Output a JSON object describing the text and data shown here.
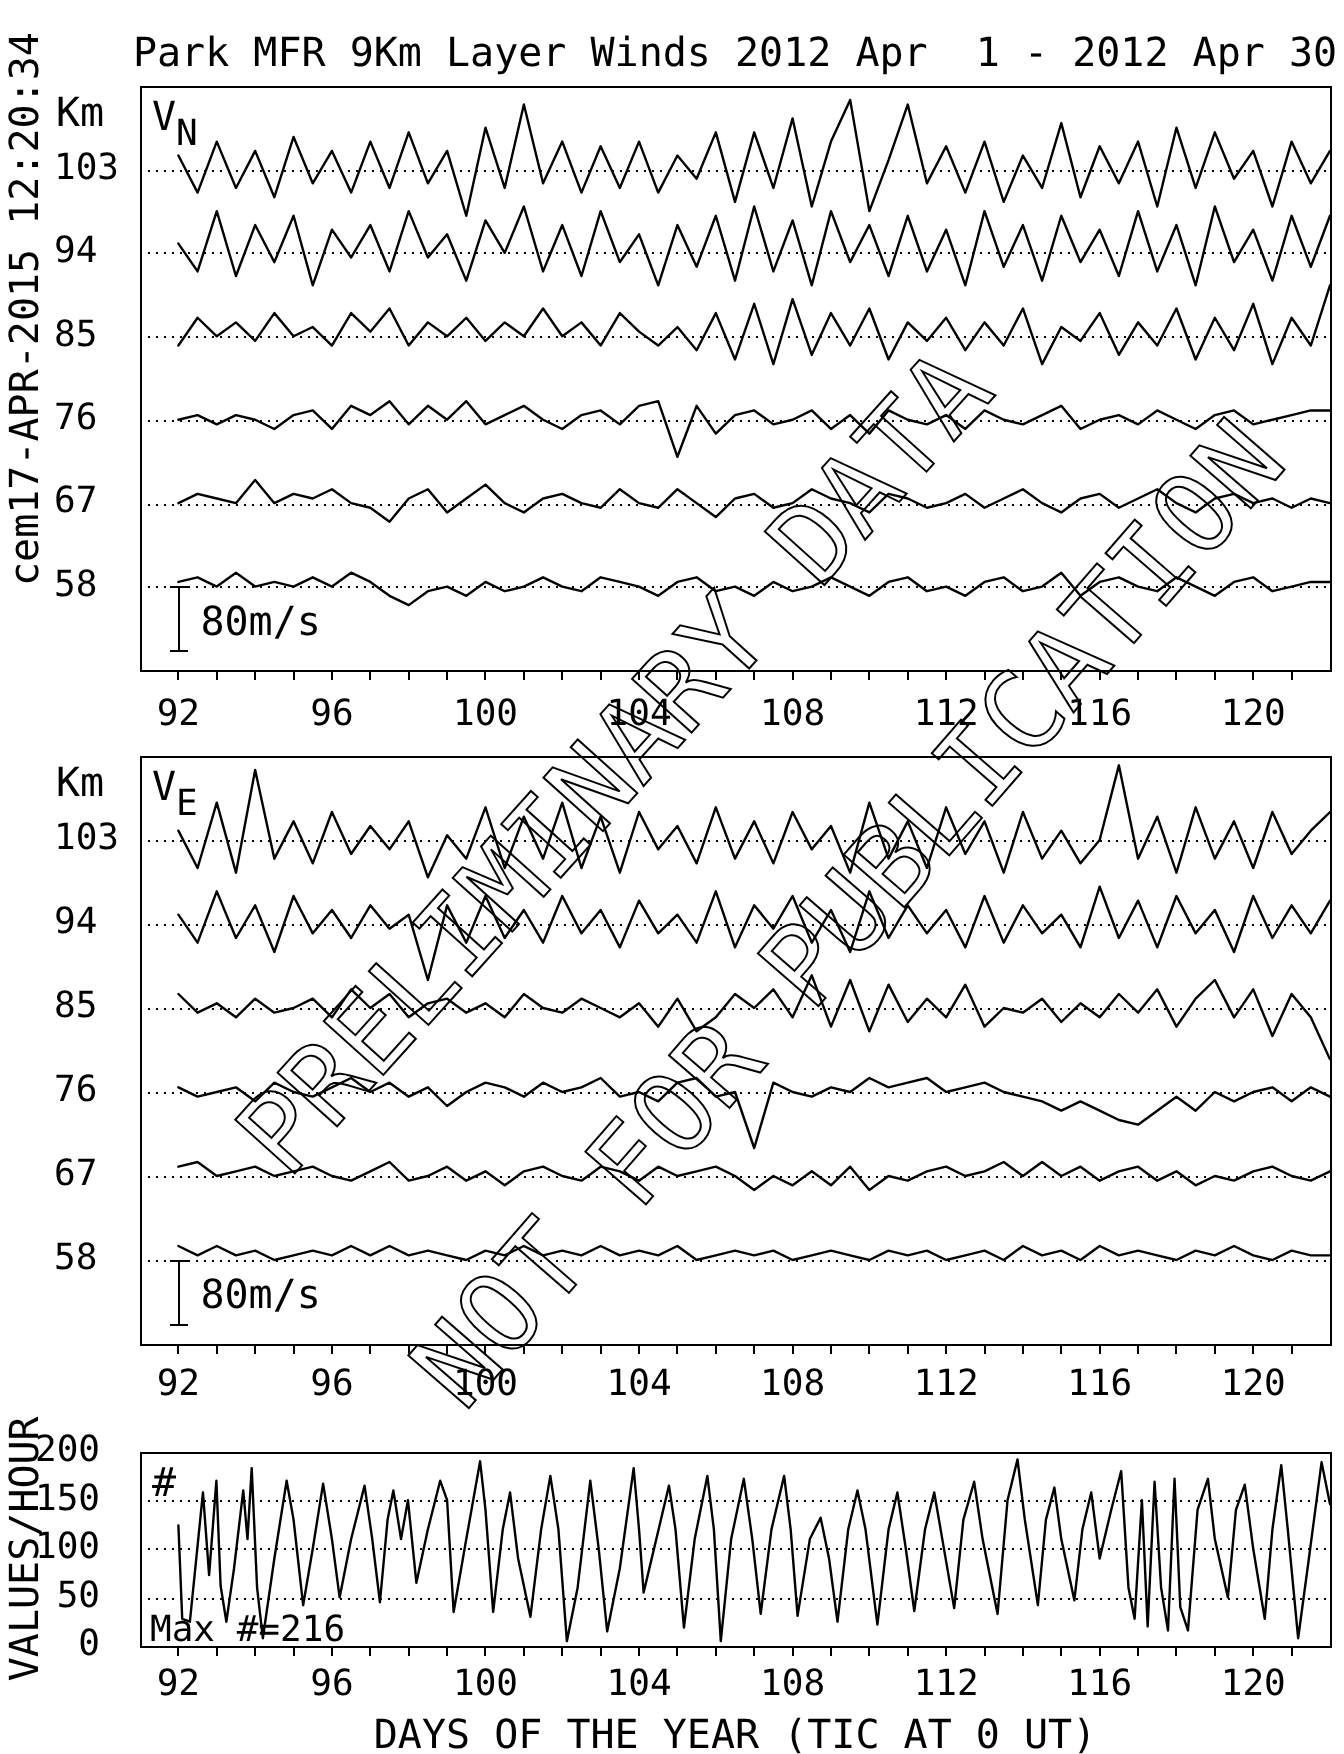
{
  "chart_data": [
    {
      "type": "line",
      "title": "Park MFR 9Km Layer Winds 2012 Apr  1 - 2012 Apr 30",
      "ylabel": "Km",
      "annotations": [
        "V$_{N}$",
        "80m/s",
        "cem17-APR-2015 12:20:34"
      ],
      "x": [
        92,
        92.5,
        93,
        93.5,
        94,
        94.5,
        95,
        95.5,
        96,
        96.5,
        97,
        97.5,
        98,
        98.5,
        99,
        99.5,
        100,
        100.5,
        101,
        101.5,
        102,
        102.5,
        103,
        103.5,
        104,
        104.5,
        105,
        105.5,
        106,
        106.5,
        107,
        107.5,
        108,
        108.5,
        109,
        109.5,
        110,
        110.5,
        111,
        111.5,
        112,
        112.5,
        113,
        113.5,
        114,
        114.5,
        115,
        115.5,
        116,
        116.5,
        117,
        117.5,
        118,
        118.5,
        119,
        119.5,
        120,
        120.5,
        121,
        121.5,
        122
      ],
      "series": [
        {
          "color": "#000000",
          "values": [
            104.5,
            100.5,
            106,
            101,
            105,
            100,
            106.5,
            101.5,
            105,
            100.5,
            106,
            101,
            107,
            101.5,
            105,
            98,
            107.5,
            101,
            110,
            101.5,
            106,
            100.5,
            105.5,
            101,
            106,
            100.5,
            104.5,
            102,
            107,
            99.5,
            107,
            101,
            108.5,
            99,
            106,
            110.5,
            98.5,
            104,
            110,
            101.5,
            105.5,
            100.5,
            106,
            99.5,
            104.5,
            101,
            108,
            100,
            105.5,
            101.5,
            106,
            99,
            107.5,
            101,
            107,
            102,
            105,
            99,
            106,
            101.5,
            105
          ]
        },
        {
          "color": "#000000",
          "values": [
            95,
            92,
            98.5,
            91.5,
            97,
            93,
            98,
            90.5,
            96.5,
            93.5,
            97,
            92,
            98.5,
            93.5,
            96,
            91,
            97.5,
            94,
            99,
            92,
            97,
            91.5,
            98.5,
            93,
            96,
            90.5,
            97,
            92.5,
            98,
            91,
            99,
            92,
            97.5,
            90.5,
            98.5,
            93,
            97,
            91.5,
            98,
            92,
            96.5,
            90.5,
            98.5,
            92.5,
            97,
            91,
            98,
            93,
            96.5,
            91.5,
            98.5,
            92,
            97,
            90.5,
            99,
            93,
            96.5,
            91,
            98,
            92.5,
            98
          ]
        },
        {
          "color": "#000000",
          "values": [
            84,
            87,
            85,
            86.5,
            84.5,
            87.5,
            85,
            86,
            84,
            87.5,
            85.5,
            88,
            84,
            86.5,
            85,
            87,
            84.5,
            86.5,
            85,
            88,
            85,
            86.5,
            84,
            87.5,
            85.5,
            84,
            86,
            83.5,
            87.5,
            82.5,
            88.5,
            82,
            89,
            83,
            87.5,
            84,
            88,
            82.5,
            86.5,
            84.5,
            87,
            83.5,
            86.5,
            84,
            88,
            82,
            86,
            84.5,
            87.5,
            83,
            86.5,
            84,
            88,
            82.5,
            87,
            83.5,
            88.5,
            82,
            87,
            84,
            90.5
          ]
        },
        {
          "color": "#000000",
          "values": [
            76,
            76.5,
            75.5,
            76.5,
            76,
            75,
            76.5,
            77,
            75,
            77.5,
            76.5,
            78,
            75.5,
            77.5,
            76,
            78,
            75.5,
            76.5,
            77.5,
            76,
            75,
            76.5,
            77,
            75.5,
            77.5,
            78,
            72,
            77.5,
            74.5,
            76.5,
            77,
            75.5,
            76,
            77,
            75,
            76.5,
            74.5,
            77,
            76,
            75.5,
            76.5,
            75,
            77,
            76,
            75.5,
            76.5,
            77.5,
            75,
            76,
            76.5,
            75.5,
            77,
            76,
            75,
            76.5,
            77,
            75.5,
            76,
            76.5,
            77,
            77
          ]
        },
        {
          "color": "#000000",
          "values": [
            67,
            68,
            67.5,
            67,
            69.5,
            67,
            68,
            67.5,
            68.5,
            67,
            66.5,
            65,
            67.5,
            68.5,
            66,
            67.5,
            69,
            67,
            66,
            67.5,
            68,
            67,
            66.5,
            68.5,
            67,
            66.5,
            68.5,
            67,
            65.5,
            67.5,
            68,
            66.5,
            67,
            68.5,
            67.5,
            67,
            66,
            68,
            67.5,
            66.5,
            67,
            68,
            66.5,
            67.5,
            68.5,
            67,
            66,
            67.5,
            68,
            66.5,
            67.5,
            68.5,
            67,
            66,
            67.5,
            68,
            67,
            67.5,
            66.5,
            67.5,
            67
          ]
        },
        {
          "color": "#000000",
          "values": [
            58.5,
            59,
            58,
            59.5,
            58,
            58.5,
            58,
            59,
            58,
            59.5,
            58.5,
            57,
            56,
            57.5,
            58,
            57,
            58.5,
            57.5,
            58,
            59,
            58,
            57.5,
            59,
            58.5,
            58,
            57,
            58.5,
            59,
            57.5,
            58,
            57,
            58.5,
            57.5,
            58,
            59,
            58,
            57,
            58.5,
            59,
            57.5,
            58,
            57,
            58.5,
            59,
            57.5,
            58,
            59.5,
            57,
            58.5,
            59,
            58,
            57.5,
            59,
            58,
            57,
            58.5,
            59,
            57.5,
            58,
            58.5,
            58.5
          ]
        }
      ],
      "xlim": [
        91,
        122
      ],
      "xticks": [
        92,
        {
          "value": 93,
          "label": null
        },
        {
          "value": 94,
          "label": null
        },
        {
          "value": 95,
          "label": null
        },
        96,
        {
          "value": 97,
          "label": null
        },
        {
          "value": 98,
          "label": null
        },
        {
          "value": 99,
          "label": null
        },
        100,
        {
          "value": 101,
          "label": null
        },
        {
          "value": 102,
          "label": null
        },
        {
          "value": 103,
          "label": null
        },
        104,
        {
          "value": 105,
          "label": null
        },
        {
          "value": 106,
          "label": null
        },
        {
          "value": 107,
          "label": null
        },
        108,
        {
          "value": 109,
          "label": null
        },
        {
          "value": 110,
          "label": null
        },
        {
          "value": 111,
          "label": null
        },
        112,
        {
          "value": 113,
          "label": null
        },
        {
          "value": 114,
          "label": null
        },
        {
          "value": 115,
          "label": null
        },
        116,
        {
          "value": 117,
          "label": null
        },
        {
          "value": 118,
          "label": null
        },
        {
          "value": 119,
          "label": null
        },
        120,
        {
          "value": 121,
          "label": null
        }
      ],
      "ylim": [
        49,
        112
      ],
      "yticks": [
        58,
        67,
        76,
        85,
        94,
        103
      ],
      "grid": "y"
    },
    {
      "type": "line",
      "ylabel": "Km",
      "annotations": [
        "V$_{E}$",
        "80m/s",
        "PRELIMINARY DATA",
        "NOT FOR PUBLICATION"
      ],
      "x": [
        92,
        92.5,
        93,
        93.5,
        94,
        94.5,
        95,
        95.5,
        96,
        96.5,
        97,
        97.5,
        98,
        98.5,
        99,
        99.5,
        100,
        100.5,
        101,
        101.5,
        102,
        102.5,
        103,
        103.5,
        104,
        104.5,
        105,
        105.5,
        106,
        106.5,
        107,
        107.5,
        108,
        108.5,
        109,
        109.5,
        110,
        110.5,
        111,
        111.5,
        112,
        112.5,
        113,
        113.5,
        114,
        114.5,
        115,
        115.5,
        116,
        116.5,
        117,
        117.5,
        118,
        118.5,
        119,
        119.5,
        120,
        120.5,
        121,
        121.5,
        122
      ],
      "series": [
        {
          "color": "#000000",
          "values": [
            104,
            100,
            107,
            99.5,
            110.5,
            101,
            105,
            100.5,
            106,
            101.5,
            104.5,
            102,
            105,
            99,
            103.5,
            101,
            106.5,
            100,
            105.5,
            101,
            107,
            100,
            105.5,
            99.5,
            106,
            102,
            104.5,
            100.5,
            106.5,
            101,
            105,
            100.5,
            106,
            102,
            104.5,
            99.5,
            107,
            101,
            105,
            100,
            106.5,
            101.5,
            105,
            99.5,
            106,
            101,
            104,
            100.5,
            103,
            111,
            101,
            105.5,
            99.5,
            106.5,
            101,
            105,
            100,
            106,
            101.5,
            104,
            106
          ]
        },
        {
          "color": "#000000",
          "values": [
            95,
            92,
            97.5,
            92.5,
            96,
            91,
            97,
            93,
            95.5,
            92.5,
            96,
            93.5,
            95,
            88,
            96,
            92,
            97,
            92.5,
            95.5,
            92,
            97,
            93,
            95.5,
            91.5,
            96.5,
            93,
            95,
            92,
            97.5,
            91.5,
            96,
            93.5,
            97,
            92,
            95.5,
            91,
            97.5,
            92.5,
            96,
            93,
            95.5,
            91.5,
            97,
            92,
            96,
            93,
            95,
            91.5,
            98,
            92.5,
            96.5,
            91.5,
            97,
            93,
            95.5,
            91,
            97,
            92.5,
            96,
            93,
            96.5
          ]
        },
        {
          "color": "#000000",
          "values": [
            86.5,
            84.5,
            85.5,
            84,
            86,
            84.5,
            85,
            86,
            84,
            87,
            85,
            86.5,
            84,
            85.5,
            86,
            84.5,
            85.5,
            84,
            86.5,
            85,
            84.5,
            86,
            85,
            84,
            85.5,
            83,
            86,
            82.5,
            84,
            86.5,
            85,
            87,
            84,
            88.5,
            83,
            88,
            82.5,
            87.5,
            83.5,
            86,
            84,
            87.5,
            83,
            85,
            84.5,
            86,
            83.5,
            85.5,
            84,
            86.5,
            84.5,
            87,
            83,
            86,
            88,
            84,
            87,
            82,
            86.5,
            84,
            79.5
          ]
        },
        {
          "color": "#000000",
          "values": [
            76.5,
            75.5,
            76,
            76.5,
            75,
            77,
            76,
            75.5,
            76.5,
            77.5,
            76,
            77,
            75.5,
            76.5,
            74.5,
            76,
            77,
            76.5,
            75.5,
            77,
            76,
            76.5,
            77.5,
            75.5,
            76,
            75,
            77,
            77.5,
            75.5,
            76,
            70,
            77,
            76,
            75.5,
            76.5,
            76,
            77.5,
            76.5,
            77,
            77.5,
            76,
            76.5,
            77,
            76,
            75.5,
            75,
            74,
            75,
            74,
            73,
            72.5,
            74,
            75.5,
            74,
            76,
            75,
            76,
            76.5,
            75,
            76.5,
            75.5
          ]
        },
        {
          "color": "#000000",
          "values": [
            68,
            68.5,
            67,
            67.5,
            68,
            67,
            67.5,
            68,
            67,
            66.5,
            67.5,
            68.5,
            66.5,
            67,
            68,
            66.5,
            67.5,
            66,
            67.5,
            68,
            67,
            66.5,
            68,
            67.5,
            66.5,
            68,
            67,
            67.5,
            68,
            67,
            65.5,
            67,
            66,
            67.5,
            66,
            68,
            65.5,
            67,
            66.5,
            67.5,
            68,
            67,
            67.5,
            68.5,
            67,
            68.5,
            67,
            68,
            66.5,
            67.5,
            68,
            66.5,
            67.5,
            66,
            67,
            66.5,
            67.5,
            68,
            67,
            66.5,
            67.5
          ]
        },
        {
          "color": "#000000",
          "values": [
            59.5,
            58.5,
            59.5,
            58.5,
            59,
            58,
            58.5,
            59,
            58.5,
            59.5,
            58.5,
            59.5,
            58.5,
            59,
            58.5,
            58,
            59,
            58.5,
            59.5,
            58.5,
            59,
            58.5,
            59.5,
            58.5,
            59,
            58.5,
            59.5,
            58,
            58.5,
            59,
            58.5,
            59,
            58,
            58.5,
            59,
            58.5,
            58,
            59,
            58.5,
            59,
            58,
            58.5,
            59,
            58,
            59.5,
            58.5,
            59,
            58,
            59.5,
            58.5,
            59,
            58.5,
            58,
            59,
            58.5,
            59.5,
            58.5,
            58,
            59,
            58.5,
            58.5
          ]
        }
      ],
      "xlim": [
        91,
        122
      ],
      "xticks": [
        92,
        {
          "value": 93,
          "label": null
        },
        {
          "value": 94,
          "label": null
        },
        {
          "value": 95,
          "label": null
        },
        96,
        {
          "value": 97,
          "label": null
        },
        {
          "value": 98,
          "label": null
        },
        {
          "value": 99,
          "label": null
        },
        100,
        {
          "value": 101,
          "label": null
        },
        {
          "value": 102,
          "label": null
        },
        {
          "value": 103,
          "label": null
        },
        104,
        {
          "value": 105,
          "label": null
        },
        {
          "value": 106,
          "label": null
        },
        {
          "value": 107,
          "label": null
        },
        108,
        {
          "value": 109,
          "label": null
        },
        {
          "value": 110,
          "label": null
        },
        {
          "value": 111,
          "label": null
        },
        112,
        {
          "value": 113,
          "label": null
        },
        {
          "value": 114,
          "label": null
        },
        {
          "value": 115,
          "label": null
        },
        116,
        {
          "value": 117,
          "label": null
        },
        {
          "value": 118,
          "label": null
        },
        {
          "value": 119,
          "label": null
        },
        120,
        {
          "value": 121,
          "label": null
        }
      ],
      "ylim": [
        49,
        112
      ],
      "yticks": [
        58,
        67,
        76,
        85,
        94,
        103
      ],
      "grid": "y"
    },
    {
      "type": "line",
      "xlabel": "DAYS OF THE YEAR (TIC AT 0 UT)",
      "ylabel": "VALUES/HOUR",
      "annotations": [
        "#",
        "Max #=216"
      ],
      "x": [
        92,
        92.1,
        92.3,
        92.64,
        92.8,
        92.99,
        93.1,
        93.25,
        93.45,
        93.69,
        93.8,
        93.91,
        94.05,
        94.2,
        94.5,
        94.82,
        95,
        95.25,
        95.5,
        95.77,
        96,
        96.2,
        96.5,
        96.85,
        97.05,
        97.25,
        97.45,
        97.6,
        97.8,
        97.98,
        98.2,
        98.5,
        98.82,
        99,
        99.17,
        99.5,
        99.86,
        100,
        100.2,
        100.45,
        100.64,
        100.85,
        101.17,
        101.45,
        101.69,
        101.9,
        102.12,
        102.4,
        102.73,
        102.95,
        103.17,
        103.5,
        103.86,
        104,
        104.12,
        104.3,
        104.78,
        104.95,
        105.17,
        105.45,
        105.78,
        105.95,
        106.13,
        106.4,
        106.73,
        106.95,
        107.17,
        107.45,
        107.78,
        107.95,
        108.13,
        108.45,
        108.73,
        108.95,
        109.17,
        109.45,
        109.69,
        109.9,
        110.21,
        110.5,
        110.73,
        110.95,
        111.17,
        111.45,
        111.69,
        111.9,
        112.21,
        112.45,
        112.73,
        112.95,
        113.34,
        113.6,
        113.86,
        114.05,
        114.39,
        114.6,
        114.82,
        115,
        115.34,
        115.55,
        115.78,
        116,
        116.3,
        116.56,
        116.75,
        116.91,
        117.1,
        117.25,
        117.43,
        117.6,
        117.78,
        117.95,
        118.1,
        118.3,
        118.55,
        118.82,
        119,
        119.34,
        119.55,
        119.78,
        120,
        120.3,
        120.5,
        120.73,
        120.9,
        121.17,
        121.45,
        121.78,
        122
      ],
      "series": [
        {
          "color": "#000000",
          "values": [
            124,
            28,
            25,
            158,
            73,
            170,
            62,
            25,
            80,
            160,
            110,
            183,
            60,
            8,
            90,
            170,
            130,
            42,
            100,
            167,
            110,
            50,
            110,
            165,
            110,
            45,
            130,
            160,
            110,
            150,
            65,
            120,
            170,
            150,
            35,
            110,
            190,
            140,
            35,
            120,
            158,
            90,
            30,
            120,
            175,
            120,
            5,
            60,
            170,
            100,
            15,
            80,
            183,
            120,
            55,
            85,
            165,
            120,
            19,
            110,
            175,
            120,
            5,
            110,
            172,
            110,
            33,
            120,
            175,
            120,
            31,
            110,
            132,
            90,
            25,
            120,
            160,
            120,
            22,
            120,
            158,
            100,
            36,
            120,
            158,
            110,
            39,
            130,
            169,
            110,
            33,
            150,
            192,
            130,
            42,
            130,
            163,
            110,
            47,
            120,
            158,
            90,
            140,
            180,
            60,
            28,
            150,
            20,
            169,
            60,
            16,
            172,
            40,
            16,
            140,
            172,
            110,
            50,
            140,
            166,
            100,
            28,
            120,
            186,
            120,
            8,
            90,
            189,
            146
          ]
        }
      ],
      "xlim": [
        91,
        122
      ],
      "xticks": [
        92,
        {
          "value": 93,
          "label": null
        },
        {
          "value": 94,
          "label": null
        },
        {
          "value": 95,
          "label": null
        },
        96,
        {
          "value": 97,
          "label": null
        },
        {
          "value": 98,
          "label": null
        },
        {
          "value": 99,
          "label": null
        },
        100,
        {
          "value": 101,
          "label": null
        },
        {
          "value": 102,
          "label": null
        },
        {
          "value": 103,
          "label": null
        },
        104,
        {
          "value": 105,
          "label": null
        },
        {
          "value": 106,
          "label": null
        },
        {
          "value": 107,
          "label": null
        },
        108,
        {
          "value": 109,
          "label": null
        },
        {
          "value": 110,
          "label": null
        },
        {
          "value": 111,
          "label": null
        },
        112,
        {
          "value": 113,
          "label": null
        },
        {
          "value": 114,
          "label": null
        },
        {
          "value": 115,
          "label": null
        },
        116,
        {
          "value": 117,
          "label": null
        },
        {
          "value": 118,
          "label": null
        },
        {
          "value": 119,
          "label": null
        },
        120,
        {
          "value": 121,
          "label": null
        }
      ],
      "ylim": [
        0,
        200
      ],
      "yticks": [
        0,
        50,
        100,
        150,
        200
      ],
      "grid": "y"
    }
  ]
}
